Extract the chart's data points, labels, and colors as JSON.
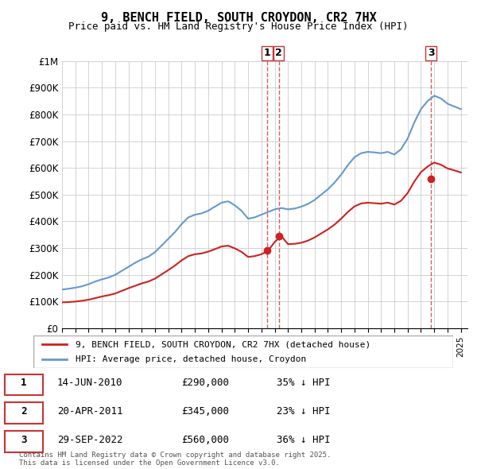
{
  "title": "9, BENCH FIELD, SOUTH CROYDON, CR2 7HX",
  "subtitle": "Price paid vs. HM Land Registry's House Price Index (HPI)",
  "ylim": [
    0,
    1000000
  ],
  "yticks": [
    0,
    100000,
    200000,
    300000,
    400000,
    500000,
    600000,
    700000,
    800000,
    900000,
    1000000
  ],
  "ytick_labels": [
    "£0",
    "£100K",
    "£200K",
    "£300K",
    "£400K",
    "£500K",
    "£600K",
    "£700K",
    "£800K",
    "£900K",
    "£1M"
  ],
  "hpi_color": "#6699cc",
  "price_color": "#cc2222",
  "dashed_line_color": "#cc3333",
  "transactions": [
    {
      "label": "1",
      "date": "14-JUN-2010",
      "price": 290000,
      "pct": "35%",
      "x": 2010.45
    },
    {
      "label": "2",
      "date": "20-APR-2011",
      "price": 345000,
      "pct": "23%",
      "x": 2011.3
    },
    {
      "label": "3",
      "date": "29-SEP-2022",
      "price": 560000,
      "pct": "36%",
      "x": 2022.75
    }
  ],
  "legend_entries": [
    {
      "label": "9, BENCH FIELD, SOUTH CROYDON, CR2 7HX (detached house)",
      "color": "#cc2222"
    },
    {
      "label": "HPI: Average price, detached house, Croydon",
      "color": "#6699cc"
    }
  ],
  "footer": "Contains HM Land Registry data © Crown copyright and database right 2025.\nThis data is licensed under the Open Government Licence v3.0.",
  "hpi_data": {
    "years": [
      1995,
      1995.5,
      1996,
      1996.5,
      1997,
      1997.5,
      1998,
      1998.5,
      1999,
      1999.5,
      2000,
      2000.5,
      2001,
      2001.5,
      2002,
      2002.5,
      2003,
      2003.5,
      2004,
      2004.5,
      2005,
      2005.5,
      2006,
      2006.5,
      2007,
      2007.5,
      2008,
      2008.5,
      2009,
      2009.5,
      2010,
      2010.5,
      2011,
      2011.5,
      2012,
      2012.5,
      2013,
      2013.5,
      2014,
      2014.5,
      2015,
      2015.5,
      2016,
      2016.5,
      2017,
      2017.5,
      2018,
      2018.5,
      2019,
      2019.5,
      2020,
      2020.5,
      2021,
      2021.5,
      2022,
      2022.5,
      2023,
      2023.5,
      2024,
      2024.5,
      2025
    ],
    "values": [
      145000,
      148000,
      152000,
      157000,
      165000,
      175000,
      183000,
      190000,
      200000,
      215000,
      230000,
      245000,
      258000,
      268000,
      285000,
      310000,
      335000,
      360000,
      390000,
      415000,
      425000,
      430000,
      440000,
      455000,
      470000,
      475000,
      460000,
      440000,
      410000,
      415000,
      425000,
      435000,
      445000,
      450000,
      445000,
      448000,
      455000,
      465000,
      480000,
      500000,
      520000,
      545000,
      575000,
      610000,
      640000,
      655000,
      660000,
      658000,
      655000,
      660000,
      650000,
      670000,
      710000,
      770000,
      820000,
      850000,
      870000,
      860000,
      840000,
      830000,
      820000
    ]
  },
  "price_data": {
    "years": [
      1995,
      1995.5,
      1996,
      1996.5,
      1997,
      1997.5,
      1998,
      1998.5,
      1999,
      1999.5,
      2000,
      2000.5,
      2001,
      2001.5,
      2002,
      2002.5,
      2003,
      2003.5,
      2004,
      2004.5,
      2005,
      2005.5,
      2006,
      2006.5,
      2007,
      2007.5,
      2008,
      2008.5,
      2009,
      2009.5,
      2010,
      2010.5,
      2011,
      2011.5,
      2012,
      2012.5,
      2013,
      2013.5,
      2014,
      2014.5,
      2015,
      2015.5,
      2016,
      2016.5,
      2017,
      2017.5,
      2018,
      2018.5,
      2019,
      2019.5,
      2020,
      2020.5,
      2021,
      2021.5,
      2022,
      2022.5,
      2023,
      2023.5,
      2024,
      2024.5,
      2025
    ],
    "values": [
      97000,
      98000,
      100000,
      103000,
      107000,
      113000,
      119000,
      124000,
      130000,
      140000,
      150000,
      159000,
      168000,
      175000,
      186000,
      202000,
      218000,
      235000,
      254000,
      270000,
      277000,
      280000,
      287000,
      296000,
      306000,
      309000,
      299000,
      286000,
      267000,
      270000,
      277000,
      290000,
      323000,
      345000,
      315000,
      316000,
      320000,
      328000,
      340000,
      355000,
      370000,
      388000,
      410000,
      435000,
      456000,
      467000,
      470000,
      468000,
      466000,
      470000,
      463000,
      477000,
      506000,
      549000,
      584000,
      605000,
      620000,
      612000,
      598000,
      591000,
      583000
    ]
  }
}
